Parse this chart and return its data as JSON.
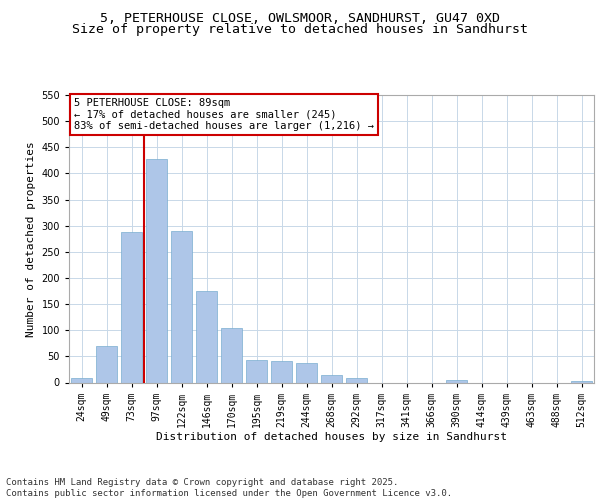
{
  "title_line1": "5, PETERHOUSE CLOSE, OWLSMOOR, SANDHURST, GU47 0XD",
  "title_line2": "Size of property relative to detached houses in Sandhurst",
  "xlabel": "Distribution of detached houses by size in Sandhurst",
  "ylabel": "Number of detached properties",
  "categories": [
    "24sqm",
    "49sqm",
    "73sqm",
    "97sqm",
    "122sqm",
    "146sqm",
    "170sqm",
    "195sqm",
    "219sqm",
    "244sqm",
    "268sqm",
    "292sqm",
    "317sqm",
    "341sqm",
    "366sqm",
    "390sqm",
    "414sqm",
    "439sqm",
    "463sqm",
    "488sqm",
    "512sqm"
  ],
  "values": [
    8,
    70,
    287,
    428,
    290,
    176,
    104,
    43,
    42,
    38,
    15,
    8,
    0,
    0,
    0,
    5,
    0,
    0,
    0,
    0,
    3
  ],
  "bar_color": "#aec6e8",
  "bar_edge_color": "#7aadd0",
  "annotation_text": "5 PETERHOUSE CLOSE: 89sqm\n← 17% of detached houses are smaller (245)\n83% of semi-detached houses are larger (1,216) →",
  "annotation_box_color": "#ffffff",
  "annotation_box_edge": "#cc0000",
  "vline_color": "#cc0000",
  "vline_x": 2.5,
  "ylim": [
    0,
    550
  ],
  "yticks": [
    0,
    50,
    100,
    150,
    200,
    250,
    300,
    350,
    400,
    450,
    500,
    550
  ],
  "footer_text": "Contains HM Land Registry data © Crown copyright and database right 2025.\nContains public sector information licensed under the Open Government Licence v3.0.",
  "bg_color": "#ffffff",
  "grid_color": "#c8d8e8",
  "title1_fontsize": 9.5,
  "title2_fontsize": 9.5,
  "tick_fontsize": 7,
  "label_fontsize": 8,
  "footer_fontsize": 6.5,
  "annotation_fontsize": 7.5
}
